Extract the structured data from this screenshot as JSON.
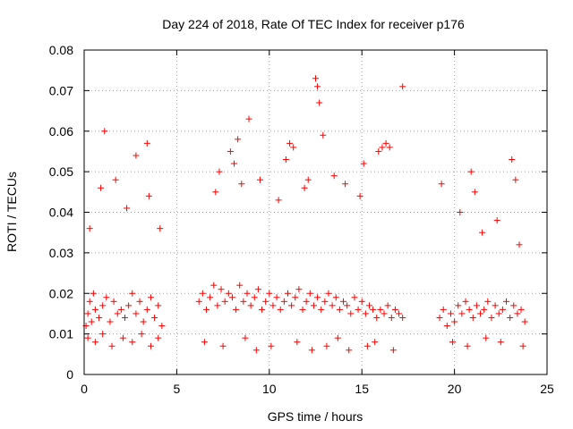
{
  "chart_data": {
    "type": "scatter",
    "title": "Day 224 of 2018, Rate Of TEC Index for receiver p176",
    "xlabel": "GPS time / hours",
    "ylabel": "ROTI / TECUs",
    "xlim": [
      0,
      25
    ],
    "ylim": [
      0,
      0.08
    ],
    "x_ticks": [
      "0",
      "5",
      "10",
      "15",
      "20",
      "25"
    ],
    "y_ticks": [
      "0",
      "0.01",
      "0.02",
      "0.03",
      "0.04",
      "0.05",
      "0.06",
      "0.07",
      "0.08"
    ],
    "grid": true,
    "marker": "+",
    "color": "#ff0000",
    "series": [
      {
        "x": [
          0.1,
          0.2,
          0.3,
          0.4,
          0.5,
          0.6,
          0.8,
          1.0,
          1.2,
          1.4,
          1.6,
          1.8,
          2.0,
          2.2,
          2.4,
          2.6,
          2.8,
          3.0,
          3.2,
          3.4,
          3.6,
          3.8,
          4.0,
          4.2,
          0.3,
          0.9,
          1.1,
          1.7,
          2.3,
          2.8,
          3.4,
          3.5,
          4.1,
          0.2,
          0.6,
          1.0,
          1.5,
          2.1,
          2.6,
          3.1,
          3.6,
          4.0,
          6.2,
          6.4,
          6.6,
          6.8,
          7.0,
          7.2,
          7.4,
          7.6,
          7.8,
          8.0,
          8.2,
          8.4,
          8.6,
          8.8,
          9.0,
          9.2,
          9.4,
          9.6,
          9.8,
          10.0,
          10.2,
          10.4,
          10.6,
          10.8,
          11.0,
          11.2,
          11.4,
          11.6,
          11.8,
          12.0,
          12.2,
          12.4,
          12.6,
          12.8,
          13.0,
          13.2,
          13.4,
          13.6,
          13.8,
          14.0,
          14.2,
          14.4,
          14.6,
          14.8,
          15.0,
          15.2,
          15.4,
          15.6,
          15.8,
          16.0,
          16.2,
          16.4,
          16.6,
          16.8,
          17.0,
          17.2,
          7.1,
          7.3,
          7.9,
          8.1,
          8.3,
          8.5,
          8.9,
          9.5,
          10.5,
          10.9,
          11.1,
          11.3,
          11.9,
          12.1,
          12.5,
          12.6,
          12.7,
          12.9,
          13.5,
          14.1,
          14.9,
          15.1,
          15.9,
          16.1,
          16.3,
          16.5,
          17.2,
          6.5,
          7.5,
          8.7,
          9.3,
          10.1,
          11.5,
          12.3,
          13.1,
          13.7,
          14.3,
          15.3,
          15.7,
          16.7,
          19.2,
          19.4,
          19.6,
          19.8,
          20.0,
          20.2,
          20.4,
          20.6,
          20.8,
          21.0,
          21.2,
          21.4,
          21.6,
          21.8,
          22.0,
          22.2,
          22.4,
          22.6,
          22.8,
          23.0,
          23.2,
          23.4,
          23.6,
          23.8,
          19.3,
          20.3,
          20.9,
          21.1,
          21.5,
          22.3,
          23.1,
          23.3,
          23.5,
          19.9,
          20.7,
          21.7,
          22.5,
          23.7
        ],
        "y": [
          0.012,
          0.015,
          0.018,
          0.013,
          0.02,
          0.016,
          0.014,
          0.017,
          0.019,
          0.013,
          0.018,
          0.015,
          0.016,
          0.014,
          0.017,
          0.02,
          0.015,
          0.018,
          0.013,
          0.016,
          0.019,
          0.014,
          0.017,
          0.012,
          0.036,
          0.046,
          0.06,
          0.048,
          0.041,
          0.054,
          0.057,
          0.044,
          0.036,
          0.009,
          0.008,
          0.01,
          0.007,
          0.009,
          0.008,
          0.01,
          0.007,
          0.009,
          0.018,
          0.02,
          0.016,
          0.019,
          0.022,
          0.017,
          0.021,
          0.018,
          0.02,
          0.019,
          0.016,
          0.022,
          0.018,
          0.02,
          0.017,
          0.019,
          0.021,
          0.016,
          0.018,
          0.02,
          0.017,
          0.019,
          0.016,
          0.018,
          0.02,
          0.017,
          0.019,
          0.021,
          0.016,
          0.018,
          0.02,
          0.017,
          0.019,
          0.016,
          0.018,
          0.02,
          0.017,
          0.019,
          0.016,
          0.018,
          0.017,
          0.015,
          0.019,
          0.016,
          0.018,
          0.015,
          0.017,
          0.016,
          0.014,
          0.016,
          0.015,
          0.017,
          0.014,
          0.016,
          0.015,
          0.014,
          0.045,
          0.05,
          0.055,
          0.052,
          0.058,
          0.047,
          0.063,
          0.048,
          0.043,
          0.053,
          0.057,
          0.056,
          0.046,
          0.048,
          0.073,
          0.071,
          0.067,
          0.059,
          0.049,
          0.047,
          0.044,
          0.052,
          0.055,
          0.056,
          0.057,
          0.056,
          0.071,
          0.008,
          0.007,
          0.009,
          0.006,
          0.007,
          0.008,
          0.006,
          0.007,
          0.009,
          0.006,
          0.007,
          0.008,
          0.006,
          0.014,
          0.016,
          0.012,
          0.015,
          0.013,
          0.017,
          0.015,
          0.018,
          0.016,
          0.014,
          0.017,
          0.015,
          0.016,
          0.018,
          0.014,
          0.017,
          0.015,
          0.016,
          0.018,
          0.014,
          0.017,
          0.015,
          0.016,
          0.013,
          0.047,
          0.04,
          0.05,
          0.045,
          0.035,
          0.038,
          0.053,
          0.048,
          0.032,
          0.008,
          0.007,
          0.009,
          0.008,
          0.007
        ]
      }
    ]
  }
}
